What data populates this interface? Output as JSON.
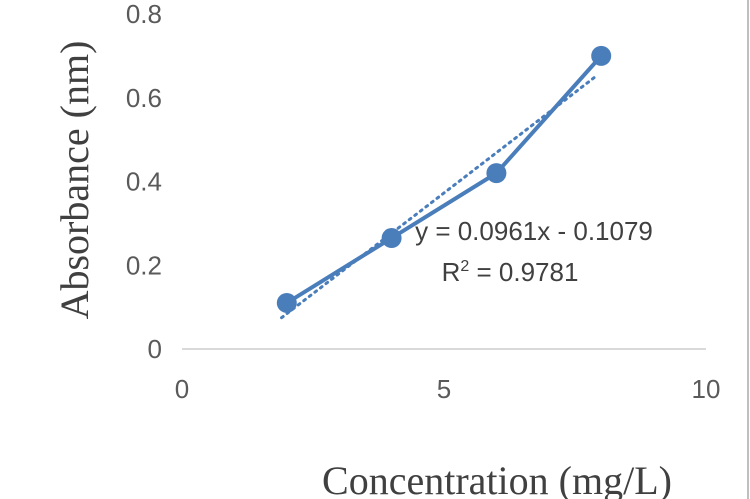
{
  "chart_data": {
    "type": "scatter",
    "xlabel": "Concentration (mg/L)",
    "ylabel": "Absorbance (nm)",
    "xlim": [
      0,
      10
    ],
    "ylim": [
      0,
      0.8
    ],
    "x_ticks": [
      "0",
      "5",
      "10"
    ],
    "y_ticks": [
      "0",
      "0.2",
      "0.4",
      "0.6",
      "0.8"
    ],
    "grid": false,
    "series": [
      {
        "x": [
          2,
          4,
          6,
          8
        ],
        "y": [
          0.11,
          0.265,
          0.42,
          0.7
        ],
        "color": "#4a7ebb",
        "markers": true,
        "line": "solid"
      }
    ],
    "trendline": {
      "type": "linear",
      "slope": 0.0961,
      "intercept": -0.1079,
      "color": "#4a7ebb",
      "style": "dotted"
    },
    "annotations": {
      "equation": "y = 0.0961x - 0.1079",
      "r2_prefix": "R",
      "r2_sup": "2",
      "r2_suffix": " = 0.9781"
    }
  }
}
